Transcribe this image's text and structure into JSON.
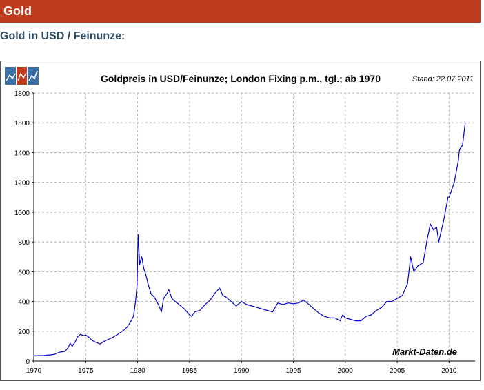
{
  "header": {
    "title": "Gold",
    "color": "#bf3b1e"
  },
  "subtitle": "Gold in USD / Feinunze:",
  "chart_data": {
    "type": "line",
    "title": "Goldpreis in USD/Feinunze; London Fixing p.m., tgl.; ab 1970",
    "stand": "Stand: 22.07.2011",
    "watermark": "Markt-Daten.de",
    "xlabel": "",
    "ylabel": "",
    "xlim": [
      1970,
      2012.5
    ],
    "ylim": [
      0,
      1800
    ],
    "x_ticks": [
      1970,
      1975,
      1980,
      1985,
      1990,
      1995,
      2000,
      2005,
      2010
    ],
    "y_ticks": [
      0,
      200,
      400,
      600,
      800,
      1000,
      1200,
      1400,
      1600,
      1800
    ],
    "grid": true,
    "line_color": "#0000cc",
    "series": [
      {
        "name": "",
        "x": [
          1970.0,
          1971.0,
          1971.7,
          1972.0,
          1972.5,
          1973.0,
          1973.3,
          1973.5,
          1973.7,
          1974.0,
          1974.2,
          1974.5,
          1974.8,
          1975.0,
          1975.3,
          1975.6,
          1976.0,
          1976.4,
          1976.7,
          1977.0,
          1977.5,
          1978.0,
          1978.5,
          1978.8,
          1979.0,
          1979.3,
          1979.6,
          1979.8,
          1979.95,
          1980.05,
          1980.2,
          1980.4,
          1980.6,
          1980.8,
          1981.0,
          1981.3,
          1981.6,
          1982.0,
          1982.3,
          1982.5,
          1982.8,
          1983.0,
          1983.3,
          1983.6,
          1984.0,
          1984.5,
          1985.0,
          1985.2,
          1985.5,
          1986.0,
          1986.5,
          1987.0,
          1987.5,
          1987.9,
          1988.2,
          1988.5,
          1989.0,
          1989.5,
          1990.0,
          1990.5,
          1991.0,
          1991.5,
          1992.0,
          1992.5,
          1993.0,
          1993.5,
          1994.0,
          1994.5,
          1995.0,
          1995.5,
          1996.0,
          1996.5,
          1997.0,
          1997.5,
          1998.0,
          1998.5,
          1999.0,
          1999.5,
          1999.75,
          2000.0,
          2000.5,
          2001.0,
          2001.5,
          2002.0,
          2002.5,
          2003.0,
          2003.5,
          2004.0,
          2004.5,
          2005.0,
          2005.5,
          2006.0,
          2006.3,
          2006.6,
          2007.0,
          2007.5,
          2007.9,
          2008.2,
          2008.5,
          2008.8,
          2009.0,
          2009.5,
          2009.9,
          2010.0,
          2010.5,
          2010.9,
          2011.0,
          2011.3,
          2011.56
        ],
        "values": [
          35,
          38,
          42,
          46,
          60,
          65,
          90,
          120,
          100,
          130,
          160,
          180,
          170,
          175,
          160,
          140,
          125,
          115,
          130,
          140,
          155,
          175,
          200,
          215,
          230,
          260,
          300,
          400,
          510,
          850,
          650,
          700,
          620,
          580,
          520,
          450,
          430,
          380,
          330,
          420,
          450,
          480,
          420,
          400,
          380,
          350,
          310,
          300,
          330,
          340,
          380,
          410,
          460,
          490,
          440,
          430,
          400,
          370,
          400,
          380,
          370,
          360,
          350,
          340,
          330,
          390,
          380,
          390,
          385,
          390,
          410,
          380,
          350,
          320,
          300,
          290,
          290,
          270,
          310,
          290,
          280,
          270,
          270,
          300,
          310,
          340,
          360,
          400,
          400,
          420,
          440,
          520,
          700,
          600,
          640,
          660,
          820,
          920,
          880,
          900,
          800,
          950,
          1100,
          1100,
          1200,
          1350,
          1420,
          1450,
          1600
        ]
      }
    ]
  }
}
